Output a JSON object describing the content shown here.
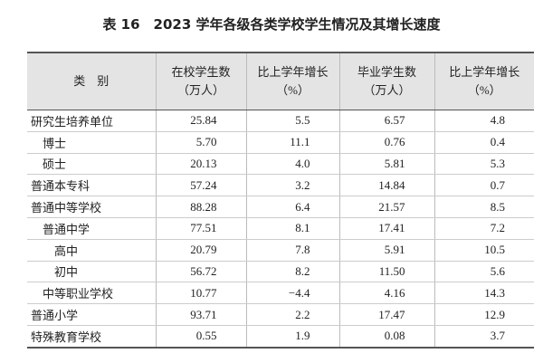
{
  "title": "表 16　2023 学年各级各类学校学生情况及其增长速度",
  "table": {
    "header": [
      [
        "类　别"
      ],
      [
        "在校学生数",
        "（万人）"
      ],
      [
        "比上学年增长",
        "（%）"
      ],
      [
        "毕业学生数",
        "（万人）"
      ],
      [
        "比上学年增长",
        "（%）"
      ]
    ],
    "rows": [
      [
        "研究生培养单位",
        "25.84",
        "5.5",
        "6.57",
        "4.8"
      ],
      [
        "博士",
        "5.70",
        "11.1",
        "0.76",
        "0.4"
      ],
      [
        "硕士",
        "20.13",
        "4.0",
        "5.81",
        "5.3"
      ],
      [
        "普通本专科",
        "57.24",
        "3.2",
        "14.84",
        "0.7"
      ],
      [
        "普通中等学校",
        "88.28",
        "6.4",
        "21.57",
        "8.5"
      ],
      [
        "普通中学",
        "77.51",
        "8.1",
        "17.41",
        "7.2"
      ],
      [
        "高中",
        "20.79",
        "7.8",
        "5.91",
        "10.5"
      ],
      [
        "初中",
        "56.72",
        "8.2",
        "11.50",
        "5.6"
      ],
      [
        "中等职业学校",
        "10.77",
        "−4.4",
        "4.16",
        "14.3"
      ],
      [
        "普通小学",
        "93.71",
        "2.2",
        "17.47",
        "12.9"
      ],
      [
        "特殊教育学校",
        "0.55",
        "1.9",
        "0.08",
        "3.7"
      ]
    ]
  }
}
